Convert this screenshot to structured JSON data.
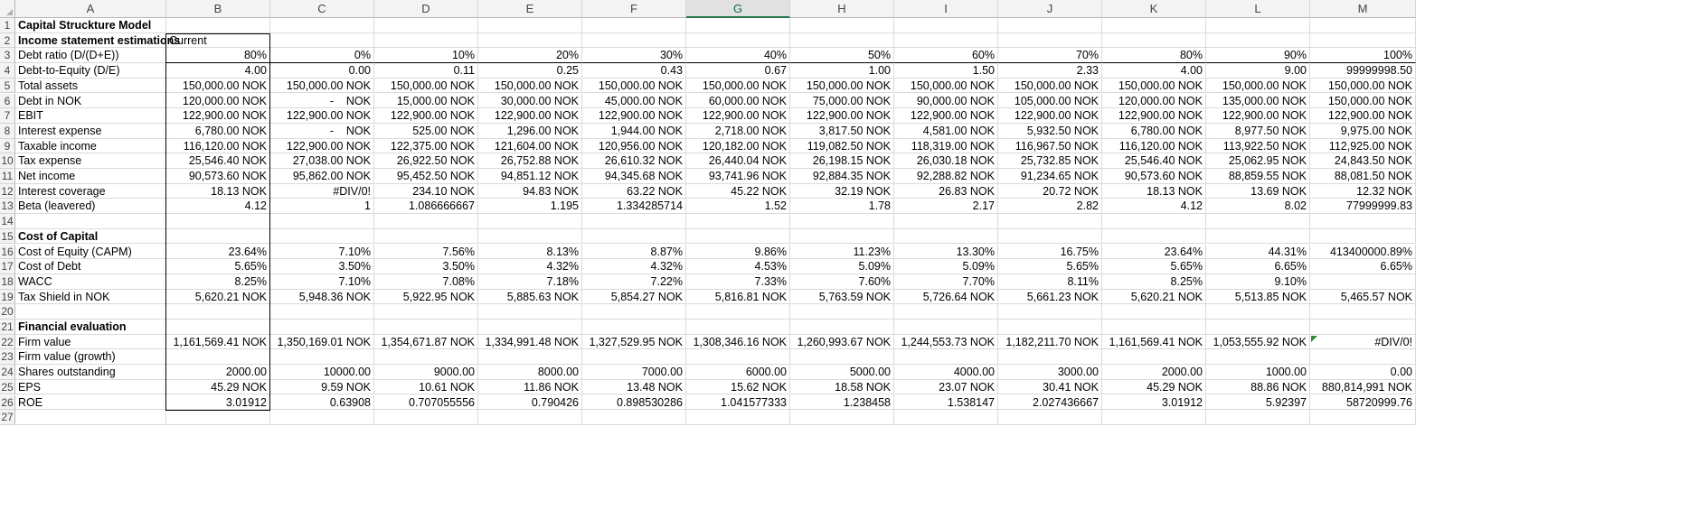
{
  "sheet": {
    "columns": [
      "A",
      "B",
      "C",
      "D",
      "E",
      "F",
      "G",
      "H",
      "I",
      "J",
      "K",
      "L",
      "M"
    ],
    "selected_column": "G",
    "row_count": 27,
    "rows": [
      {
        "r": 1,
        "a": "Capital Struckture Model",
        "bold": true,
        "vals": []
      },
      {
        "r": 2,
        "a": "Income statement estimations",
        "bold": true,
        "b_text": "Current",
        "vals": []
      },
      {
        "r": 3,
        "a": "Debt ratio (D/(D+E))",
        "vals": [
          "80%",
          "0%",
          "10%",
          "20%",
          "30%",
          "40%",
          "50%",
          "60%",
          "70%",
          "80%",
          "90%",
          "100%"
        ]
      },
      {
        "r": 4,
        "a": "Debt-to-Equity (D/E)",
        "vals": [
          "4.00",
          "0.00",
          "0.11",
          "0.25",
          "0.43",
          "0.67",
          "1.00",
          "1.50",
          "2.33",
          "4.00",
          "9.00",
          "99999998.50"
        ]
      },
      {
        "r": 5,
        "a": "Total assets",
        "vals": [
          "150,000.00 NOK",
          "150,000.00 NOK",
          "150,000.00 NOK",
          "150,000.00 NOK",
          "150,000.00 NOK",
          "150,000.00 NOK",
          "150,000.00 NOK",
          "150,000.00 NOK",
          "150,000.00 NOK",
          "150,000.00 NOK",
          "150,000.00 NOK",
          "150,000.00 NOK"
        ]
      },
      {
        "r": 6,
        "a": "Debt in NOK",
        "vals": [
          "120,000.00 NOK",
          "-    NOK",
          "15,000.00 NOK",
          "30,000.00 NOK",
          "45,000.00 NOK",
          "60,000.00 NOK",
          "75,000.00 NOK",
          "90,000.00 NOK",
          "105,000.00 NOK",
          "120,000.00 NOK",
          "135,000.00 NOK",
          "150,000.00 NOK"
        ]
      },
      {
        "r": 7,
        "a": "EBIT",
        "vals": [
          "122,900.00 NOK",
          "122,900.00 NOK",
          "122,900.00 NOK",
          "122,900.00 NOK",
          "122,900.00 NOK",
          "122,900.00 NOK",
          "122,900.00 NOK",
          "122,900.00 NOK",
          "122,900.00 NOK",
          "122,900.00 NOK",
          "122,900.00 NOK",
          "122,900.00 NOK"
        ]
      },
      {
        "r": 8,
        "a": "Interest expense",
        "vals": [
          "6,780.00 NOK",
          "-    NOK",
          "525.00 NOK",
          "1,296.00 NOK",
          "1,944.00 NOK",
          "2,718.00 NOK",
          "3,817.50 NOK",
          "4,581.00 NOK",
          "5,932.50 NOK",
          "6,780.00 NOK",
          "8,977.50 NOK",
          "9,975.00 NOK"
        ]
      },
      {
        "r": 9,
        "a": "Taxable income",
        "vals": [
          "116,120.00 NOK",
          "122,900.00 NOK",
          "122,375.00 NOK",
          "121,604.00 NOK",
          "120,956.00 NOK",
          "120,182.00 NOK",
          "119,082.50 NOK",
          "118,319.00 NOK",
          "116,967.50 NOK",
          "116,120.00 NOK",
          "113,922.50 NOK",
          "112,925.00 NOK"
        ]
      },
      {
        "r": 10,
        "a": "Tax expense",
        "vals": [
          "25,546.40 NOK",
          "27,038.00 NOK",
          "26,922.50 NOK",
          "26,752.88 NOK",
          "26,610.32 NOK",
          "26,440.04 NOK",
          "26,198.15 NOK",
          "26,030.18 NOK",
          "25,732.85 NOK",
          "25,546.40 NOK",
          "25,062.95 NOK",
          "24,843.50 NOK"
        ]
      },
      {
        "r": 11,
        "a": "Net income",
        "vals": [
          "90,573.60 NOK",
          "95,862.00 NOK",
          "95,452.50 NOK",
          "94,851.12 NOK",
          "94,345.68 NOK",
          "93,741.96 NOK",
          "92,884.35 NOK",
          "92,288.82 NOK",
          "91,234.65 NOK",
          "90,573.60 NOK",
          "88,859.55 NOK",
          "88,081.50 NOK"
        ]
      },
      {
        "r": 12,
        "a": "Interest coverage",
        "vals": [
          "18.13 NOK",
          "#DIV/0!",
          "234.10 NOK",
          "94.83 NOK",
          "63.22 NOK",
          "45.22 NOK",
          "32.19 NOK",
          "26.83 NOK",
          "20.72 NOK",
          "18.13 NOK",
          "13.69 NOK",
          "12.32 NOK"
        ]
      },
      {
        "r": 13,
        "a": "Beta (leavered)",
        "vals": [
          "4.12",
          "1",
          "1.086666667",
          "1.195",
          "1.334285714",
          "1.52",
          "1.78",
          "2.17",
          "2.82",
          "4.12",
          "8.02",
          "77999999.83"
        ]
      },
      {
        "r": 14,
        "a": "",
        "vals": []
      },
      {
        "r": 15,
        "a": "Cost of Capital",
        "bold": true,
        "vals": []
      },
      {
        "r": 16,
        "a": "Cost of Equity (CAPM)",
        "vals": [
          "23.64%",
          "7.10%",
          "7.56%",
          "8.13%",
          "8.87%",
          "9.86%",
          "11.23%",
          "13.30%",
          "16.75%",
          "23.64%",
          "44.31%",
          "413400000.89%"
        ]
      },
      {
        "r": 17,
        "a": "Cost of Debt",
        "vals": [
          "5.65%",
          "3.50%",
          "3.50%",
          "4.32%",
          "4.32%",
          "4.53%",
          "5.09%",
          "5.09%",
          "5.65%",
          "5.65%",
          "6.65%",
          "6.65%"
        ]
      },
      {
        "r": 18,
        "a": "WACC",
        "vals": [
          "8.25%",
          "7.10%",
          "7.08%",
          "7.18%",
          "7.22%",
          "7.33%",
          "7.60%",
          "7.70%",
          "8.11%",
          "8.25%",
          "9.10%",
          ""
        ]
      },
      {
        "r": 19,
        "a": "Tax Shield in NOK",
        "vals": [
          "5,620.21 NOK",
          "5,948.36 NOK",
          "5,922.95 NOK",
          "5,885.63 NOK",
          "5,854.27 NOK",
          "5,816.81 NOK",
          "5,763.59 NOK",
          "5,726.64 NOK",
          "5,661.23 NOK",
          "5,620.21 NOK",
          "5,513.85 NOK",
          "5,465.57 NOK"
        ]
      },
      {
        "r": 20,
        "a": "",
        "vals": []
      },
      {
        "r": 21,
        "a": "Financial evaluation",
        "bold": true,
        "vals": []
      },
      {
        "r": 22,
        "a": "Firm value",
        "vals": [
          "1,161,569.41 NOK",
          "1,350,169.01 NOK",
          "1,354,671.87 NOK",
          "1,334,991.48 NOK",
          "1,327,529.95 NOK",
          "1,308,346.16 NOK",
          "1,260,993.67 NOK",
          "1,244,553.73 NOK",
          "1,182,211.70 NOK",
          "1,161,569.41 NOK",
          "1,053,555.92 NOK",
          "#DIV/0!"
        ]
      },
      {
        "r": 23,
        "a": "Firm value (growth)",
        "vals": []
      },
      {
        "r": 24,
        "a": "Shares outstanding",
        "vals": [
          "2000.00",
          "10000.00",
          "9000.00",
          "8000.00",
          "7000.00",
          "6000.00",
          "5000.00",
          "4000.00",
          "3000.00",
          "2000.00",
          "1000.00",
          "0.00"
        ]
      },
      {
        "r": 25,
        "a": "EPS",
        "vals": [
          "45.29 NOK",
          "9.59 NOK",
          "10.61 NOK",
          "11.86 NOK",
          "13.48 NOK",
          "15.62 NOK",
          "18.58 NOK",
          "23.07 NOK",
          "30.41 NOK",
          "45.29 NOK",
          "88.86 NOK",
          "880,814,991 NOK"
        ]
      },
      {
        "r": 26,
        "a": "ROE",
        "vals": [
          "3.01912",
          "0.63908",
          "0.707055556",
          "0.790426",
          "0.898530286",
          "1.041577333",
          "1.238458",
          "1.538147",
          "2.027436667",
          "3.01912",
          "5.92397",
          "58720999.76"
        ]
      },
      {
        "r": 27,
        "a": "",
        "vals": []
      }
    ]
  }
}
